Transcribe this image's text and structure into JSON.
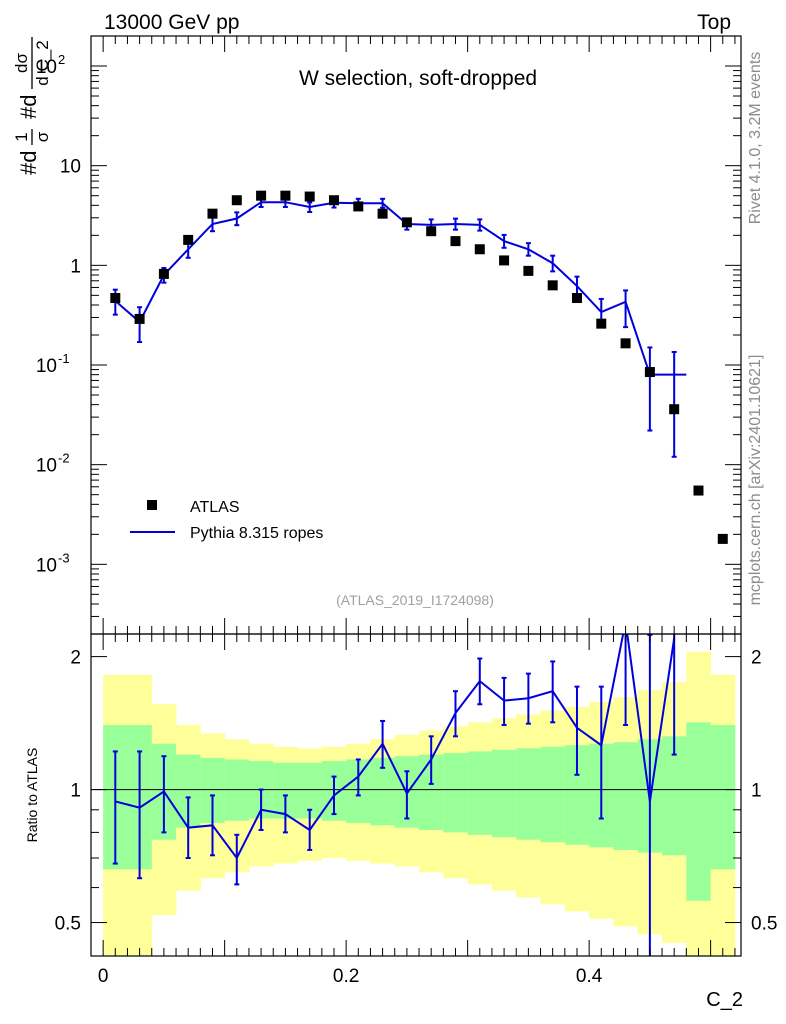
{
  "header": {
    "left": "13000 GeV pp",
    "right": "Top"
  },
  "sidebar": {
    "rivet": "Rivet 4.1.0,  3.2M events",
    "source": "mcplots.cern.ch [arXiv:2401.10621]"
  },
  "colors": {
    "data": "#000000",
    "mc": "#0000dd",
    "band_inner": "#99ff99",
    "band_outer": "#ffff99"
  },
  "chart_data": [
    {
      "type": "scatter",
      "panel": "main",
      "title": "W selection, soft-dropped",
      "ylabel": "#d^1/σ #d^dσ/dC_2",
      "ylabel_parts": [
        "#d",
        "1",
        "σ",
        "#d",
        "dσ",
        "d C_2"
      ],
      "xlabel": "C_2",
      "yscale": "log",
      "ylim": [
        0.0002,
        200
      ],
      "xlim": [
        -0.01,
        0.525
      ],
      "y_ticks": [
        {
          "value": 0.001,
          "base": "10",
          "exp": "-3"
        },
        {
          "value": 0.01,
          "base": "10",
          "exp": "-2"
        },
        {
          "value": 0.1,
          "base": "10",
          "exp": "-1"
        },
        {
          "value": 1,
          "base": "1",
          "exp": ""
        },
        {
          "value": 10,
          "base": "10",
          "exp": ""
        },
        {
          "value": 100,
          "base": "10",
          "exp": "2"
        }
      ],
      "analysis_id": "(ATLAS_2019_I1724098)",
      "legend": {
        "position": "bottom-left",
        "entries": [
          {
            "label": "ATLAS",
            "style": "marker"
          },
          {
            "label": "Pythia 8.315 ropes",
            "style": "line"
          }
        ]
      },
      "series": [
        {
          "name": "ATLAS",
          "style": "marker",
          "x": [
            0.01,
            0.03,
            0.05,
            0.07,
            0.09,
            0.11,
            0.13,
            0.15,
            0.17,
            0.19,
            0.21,
            0.23,
            0.25,
            0.27,
            0.29,
            0.31,
            0.33,
            0.35,
            0.37,
            0.39,
            0.41,
            0.43,
            0.45,
            0.47,
            0.49,
            0.51
          ],
          "y": [
            0.47,
            0.29,
            0.82,
            1.8,
            3.3,
            4.5,
            5.0,
            5.0,
            4.9,
            4.5,
            3.9,
            3.3,
            2.7,
            2.2,
            1.75,
            1.45,
            1.12,
            0.88,
            0.63,
            0.47,
            0.26,
            0.165,
            0.085,
            0.036,
            0.0055,
            0.0018
          ]
        },
        {
          "name": "Pythia 8.315 ropes",
          "style": "line",
          "bin_edges": [
            0.0,
            0.02,
            0.04,
            0.06,
            0.08,
            0.1,
            0.12,
            0.14,
            0.16,
            0.18,
            0.2,
            0.22,
            0.24,
            0.26,
            0.28,
            0.3,
            0.32,
            0.34,
            0.36,
            0.38,
            0.4,
            0.42,
            0.44,
            0.46,
            0.48
          ],
          "x": [
            0.01,
            0.03,
            0.05,
            0.07,
            0.09,
            0.11,
            0.13,
            0.15,
            0.17,
            0.19,
            0.21,
            0.23,
            0.25,
            0.27,
            0.29,
            0.31,
            0.33,
            0.35,
            0.37,
            0.39,
            0.41,
            0.43,
            0.45,
            0.47
          ],
          "y": [
            0.44,
            0.27,
            0.8,
            1.45,
            2.6,
            2.95,
            4.3,
            4.3,
            3.85,
            4.25,
            4.2,
            4.2,
            2.6,
            2.55,
            2.6,
            2.55,
            1.75,
            1.45,
            1.05,
            0.62,
            0.34,
            0.43,
            0.08,
            0.08
          ],
          "yerr_low": [
            0.12,
            0.1,
            0.13,
            0.26,
            0.4,
            0.42,
            0.45,
            0.45,
            0.42,
            0.45,
            0.42,
            0.42,
            0.32,
            0.32,
            0.32,
            0.32,
            0.25,
            0.2,
            0.18,
            0.13,
            0.1,
            0.19,
            0.058,
            0.068
          ],
          "yerr_high": [
            0.13,
            0.11,
            0.14,
            0.28,
            0.42,
            0.45,
            0.45,
            0.45,
            0.42,
            0.45,
            0.45,
            0.45,
            0.34,
            0.34,
            0.34,
            0.34,
            0.27,
            0.22,
            0.2,
            0.15,
            0.12,
            0.13,
            0.07,
            0.055
          ]
        }
      ]
    },
    {
      "type": "line",
      "panel": "ratio",
      "ylabel": "Ratio to ATLAS",
      "xlabel": "C_2",
      "ylim": [
        0.42,
        2.25
      ],
      "xlim": [
        -0.01,
        0.525
      ],
      "x_ticks": [
        0,
        0.2,
        0.4
      ],
      "x_tick_labels": [
        "0",
        "0.2",
        "0.4"
      ],
      "y_ticks": [
        0.5,
        1,
        2
      ],
      "y_tick_labels": [
        "0.5",
        "1",
        "2"
      ],
      "reference_line": 1,
      "bands": {
        "bin_edges": [
          0.0,
          0.02,
          0.04,
          0.06,
          0.08,
          0.1,
          0.12,
          0.14,
          0.16,
          0.18,
          0.2,
          0.22,
          0.24,
          0.26,
          0.28,
          0.3,
          0.32,
          0.34,
          0.36,
          0.38,
          0.4,
          0.42,
          0.44,
          0.46,
          0.48,
          0.5,
          0.52
        ],
        "inner_low": [
          0.66,
          0.66,
          0.77,
          0.82,
          0.84,
          0.85,
          0.86,
          0.86,
          0.86,
          0.85,
          0.84,
          0.83,
          0.82,
          0.81,
          0.8,
          0.79,
          0.78,
          0.77,
          0.76,
          0.75,
          0.74,
          0.73,
          0.72,
          0.71,
          0.56,
          0.66
        ],
        "inner_high": [
          1.4,
          1.4,
          1.27,
          1.2,
          1.18,
          1.17,
          1.16,
          1.15,
          1.15,
          1.16,
          1.17,
          1.18,
          1.19,
          1.2,
          1.21,
          1.22,
          1.23,
          1.24,
          1.25,
          1.26,
          1.27,
          1.28,
          1.3,
          1.32,
          1.42,
          1.4
        ],
        "outer_low": [
          0.38,
          0.38,
          0.52,
          0.59,
          0.63,
          0.65,
          0.67,
          0.68,
          0.69,
          0.7,
          0.69,
          0.68,
          0.67,
          0.65,
          0.63,
          0.61,
          0.59,
          0.57,
          0.55,
          0.53,
          0.51,
          0.49,
          0.47,
          0.45,
          0.4,
          0.38
        ],
        "outer_high": [
          1.82,
          1.82,
          1.56,
          1.4,
          1.34,
          1.3,
          1.27,
          1.25,
          1.24,
          1.25,
          1.27,
          1.3,
          1.33,
          1.36,
          1.39,
          1.42,
          1.45,
          1.48,
          1.51,
          1.54,
          1.58,
          1.62,
          1.68,
          1.75,
          2.05,
          1.82
        ]
      },
      "series": [
        {
          "name": "Pythia 8.315 ropes / ATLAS",
          "x": [
            0.01,
            0.03,
            0.05,
            0.07,
            0.09,
            0.11,
            0.13,
            0.15,
            0.17,
            0.19,
            0.21,
            0.23,
            0.25,
            0.27,
            0.29,
            0.31,
            0.33,
            0.35,
            0.37,
            0.39,
            0.41,
            0.43,
            0.45,
            0.47
          ],
          "y": [
            0.94,
            0.91,
            0.99,
            0.82,
            0.83,
            0.7,
            0.9,
            0.88,
            0.81,
            0.97,
            1.07,
            1.27,
            0.98,
            1.17,
            1.49,
            1.76,
            1.59,
            1.61,
            1.67,
            1.38,
            1.26,
            2.4,
            0.94,
            2.2
          ],
          "yerr_low": [
            0.26,
            0.28,
            0.19,
            0.12,
            0.12,
            0.09,
            0.09,
            0.08,
            0.08,
            0.09,
            0.1,
            0.15,
            0.12,
            0.14,
            0.17,
            0.2,
            0.19,
            0.2,
            0.25,
            0.3,
            0.4,
            1.0,
            0.7,
            1.0
          ],
          "yerr_high": [
            0.28,
            0.31,
            0.2,
            0.14,
            0.14,
            0.09,
            0.1,
            0.09,
            0.09,
            0.1,
            0.1,
            0.16,
            0.12,
            0.15,
            0.18,
            0.22,
            0.2,
            0.22,
            0.28,
            0.33,
            0.45,
            1.0,
            1.3,
            1.0
          ]
        }
      ]
    }
  ]
}
